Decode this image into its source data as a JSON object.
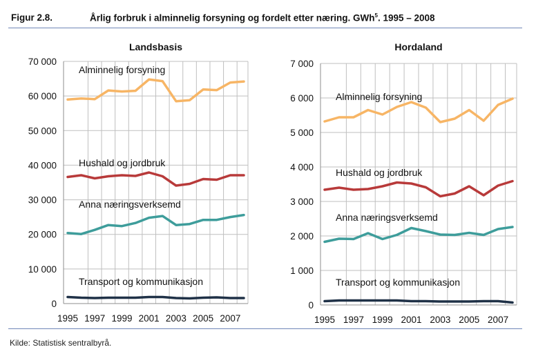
{
  "figure": {
    "number": "Figur 2.8.",
    "title": "Årlig forbruk i alminnelig forsyning og fordelt etter næring. GWh",
    "title_sup": "5",
    "title_suffix": ". 1995 – 2008",
    "source": "Kilde: Statistisk sentralbyrå."
  },
  "colors": {
    "Alminnelig forsyning": "#f7b565",
    "Hushald og jordbruk": "#b83a3a",
    "Anna næringsverksemd": "#3e9d9b",
    "Transport og kommunikasjon": "#1f3147",
    "grid": "#bfbfbf",
    "rule": "#6f86b8"
  },
  "chart_data": [
    {
      "type": "line",
      "title": "Landsbasis",
      "x": [
        1995,
        1996,
        1997,
        1998,
        1999,
        2000,
        2001,
        2002,
        2003,
        2004,
        2005,
        2006,
        2007,
        2008
      ],
      "xticks": [
        "1995",
        "1997",
        "1999",
        "2001",
        "2003",
        "2005",
        "2007"
      ],
      "yticks": [
        "0",
        "10 000",
        "20 000",
        "30 000",
        "40 000",
        "50 000",
        "60 000",
        "70 000"
      ],
      "ylim": [
        0,
        70000
      ],
      "grid": true,
      "series": [
        {
          "name": "Alminnelig forsyning",
          "values": [
            59000,
            59300,
            59100,
            61600,
            61300,
            61500,
            64800,
            64300,
            58500,
            58800,
            61900,
            61700,
            63900,
            64200
          ]
        },
        {
          "name": "Hushald og jordbruk",
          "values": [
            36600,
            37100,
            36200,
            36800,
            37100,
            36900,
            37900,
            36800,
            34100,
            34600,
            36000,
            35800,
            37100,
            37100
          ]
        },
        {
          "name": "Anna næringsverksemd",
          "values": [
            20400,
            20100,
            21300,
            22700,
            22400,
            23300,
            24800,
            25300,
            22700,
            23000,
            24200,
            24200,
            25000,
            25600
          ]
        },
        {
          "name": "Transport og kommunikasjon",
          "values": [
            1900,
            1700,
            1600,
            1700,
            1700,
            1700,
            1900,
            1900,
            1600,
            1500,
            1700,
            1800,
            1600,
            1600
          ]
        }
      ],
      "labels": [
        "Alminnelig forsyning",
        "Hushald og jordbruk",
        "Anna næringsverksemd",
        "Transport og kommunikasjon"
      ]
    },
    {
      "type": "line",
      "title": "Hordaland",
      "x": [
        1995,
        1996,
        1997,
        1998,
        1999,
        2000,
        2001,
        2002,
        2003,
        2004,
        2005,
        2006,
        2007,
        2008
      ],
      "xticks": [
        "1995",
        "1997",
        "1999",
        "2001",
        "2003",
        "2005",
        "2007"
      ],
      "yticks": [
        "0",
        "1 000",
        "2 000",
        "3 000",
        "4 000",
        "5 000",
        "6 000",
        "7 000"
      ],
      "ylim": [
        0,
        7000
      ],
      "grid": true,
      "series": [
        {
          "name": "Alminnelig forsyning",
          "values": [
            5320,
            5440,
            5440,
            5650,
            5520,
            5740,
            5880,
            5720,
            5300,
            5400,
            5650,
            5340,
            5800,
            5980
          ]
        },
        {
          "name": "Hushald og jordbruk",
          "values": [
            3340,
            3400,
            3340,
            3360,
            3440,
            3550,
            3520,
            3410,
            3150,
            3230,
            3440,
            3180,
            3460,
            3590
          ]
        },
        {
          "name": "Anna næringsverksemd",
          "values": [
            1830,
            1920,
            1910,
            2080,
            1910,
            2030,
            2230,
            2140,
            2040,
            2030,
            2090,
            2030,
            2200,
            2260
          ]
        },
        {
          "name": "Transport og kommunikasjon",
          "values": [
            110,
            130,
            130,
            130,
            130,
            130,
            110,
            110,
            100,
            100,
            100,
            110,
            110,
            70
          ]
        }
      ],
      "labels": [
        "Alminnelig forsyning",
        "Hushald og jordbruk",
        "Anna næringsverksemd",
        "Transport og kommunikasjon"
      ]
    }
  ]
}
